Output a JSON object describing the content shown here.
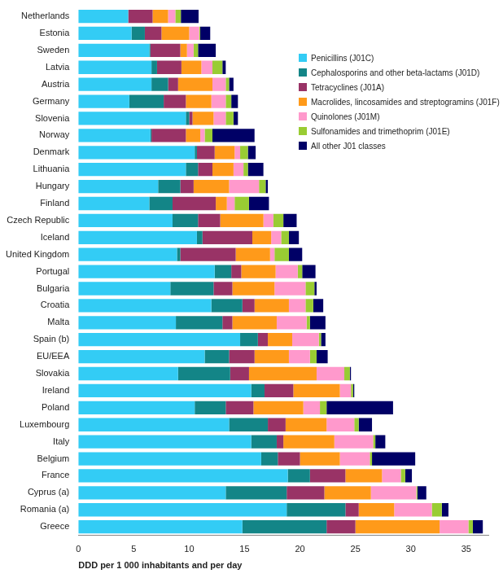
{
  "chart_data": {
    "type": "bar",
    "orientation": "horizontal",
    "stacked": true,
    "grid": false,
    "legend": "upper right",
    "xlabel": "DDD per 1 000 inhabitants and per day",
    "xlim": [
      0,
      37
    ],
    "xticks": [
      0,
      5,
      10,
      15,
      20,
      25,
      30,
      35
    ],
    "categories": [
      "Netherlands",
      "Estonia",
      "Sweden",
      "Latvia",
      "Austria",
      "Germany",
      "Slovenia",
      "Norway",
      "Denmark",
      "Lithuania",
      "Hungary",
      "Finland",
      "Czech Republic",
      "Iceland",
      "United Kingdom",
      "Portugal",
      "Bulgaria",
      "Croatia",
      "Malta",
      "Spain (b)",
      "EU/EEA",
      "Slovakia",
      "Ireland",
      "Poland",
      "Luxembourg",
      "Italy",
      "Belgium",
      "France",
      "Cyprus (a)",
      "Romania (a)",
      "Greece"
    ],
    "series": [
      {
        "name": "Penicillins (J01C)",
        "color": "#33ccf5",
        "values": [
          4.5,
          4.8,
          6.4,
          6.6,
          6.6,
          4.6,
          9.7,
          6.5,
          10.5,
          9.7,
          7.2,
          6.4,
          8.5,
          10.7,
          8.9,
          12.3,
          8.3,
          12.0,
          8.8,
          14.6,
          11.4,
          9.0,
          15.6,
          10.5,
          13.6,
          15.6,
          16.5,
          18.9,
          13.3,
          18.8,
          14.8
        ]
      },
      {
        "name": "Cephalosporins and other beta-lactams (J01D)",
        "color": "#138587",
        "values": [
          0,
          1.2,
          0.1,
          0.5,
          1.5,
          3.1,
          0.3,
          0.1,
          0.2,
          1.1,
          2.0,
          2.1,
          2.3,
          0.5,
          0.3,
          1.5,
          3.9,
          2.8,
          4.2,
          1.6,
          2.2,
          4.7,
          1.2,
          2.8,
          3.5,
          2.3,
          1.5,
          2.0,
          5.5,
          5.3,
          7.6
        ]
      },
      {
        "name": "Tetracyclines (J01A)",
        "color": "#993366",
        "values": [
          2.2,
          1.5,
          2.7,
          2.2,
          0.9,
          2.0,
          0.3,
          3.1,
          1.6,
          1.3,
          1.2,
          3.9,
          2.0,
          4.5,
          5.0,
          0.9,
          1.7,
          1.1,
          0.9,
          0.9,
          2.3,
          1.7,
          2.6,
          2.5,
          1.6,
          0.6,
          2.0,
          3.2,
          3.4,
          1.2,
          2.6
        ]
      },
      {
        "name": "Macrolides, lincosamides and streptogramins (J01F)",
        "color": "#ff9a1a",
        "values": [
          1.4,
          2.5,
          0.6,
          1.8,
          3.1,
          2.3,
          1.9,
          1.3,
          1.8,
          1.9,
          3.2,
          1.0,
          3.9,
          1.7,
          3.1,
          3.1,
          3.8,
          3.1,
          4.0,
          2.2,
          3.1,
          6.1,
          4.2,
          4.5,
          3.7,
          4.6,
          3.6,
          3.3,
          4.2,
          3.2,
          7.6
        ]
      },
      {
        "name": "Quinolones (J01M)",
        "color": "#ff99cc",
        "values": [
          0.65,
          0.9,
          0.6,
          1.0,
          1.2,
          1.3,
          1.1,
          0.4,
          0.5,
          0.9,
          2.7,
          0.7,
          0.9,
          0.9,
          0.4,
          2.0,
          2.8,
          1.5,
          2.7,
          2.4,
          1.9,
          2.5,
          1.0,
          1.5,
          2.5,
          3.5,
          2.7,
          1.7,
          4.1,
          3.4,
          2.6
        ]
      },
      {
        "name": "Sulfonamides and trimethoprim (J01E)",
        "color": "#99cc33",
        "values": [
          0.5,
          0.1,
          0.4,
          0.9,
          0.3,
          0.5,
          0.7,
          0.7,
          0.7,
          0.4,
          0.6,
          1.3,
          0.9,
          0.7,
          1.3,
          0.4,
          0.8,
          0.7,
          0.3,
          0.2,
          0.6,
          0.5,
          0.2,
          0.6,
          0.4,
          0.2,
          0.2,
          0.4,
          0.1,
          0.9,
          0.4
        ]
      },
      {
        "name": "All other J01 classes",
        "color": "#000066",
        "values": [
          1.6,
          0.9,
          1.6,
          0.3,
          0.4,
          0.6,
          0.4,
          3.8,
          0.7,
          1.4,
          0.2,
          1.8,
          1.2,
          0.9,
          1.2,
          1.2,
          0.2,
          0.9,
          1.4,
          0.4,
          1.0,
          0.1,
          0.1,
          6.0,
          1.2,
          0.9,
          3.9,
          0.6,
          0.8,
          0.6,
          0.9
        ]
      }
    ]
  }
}
